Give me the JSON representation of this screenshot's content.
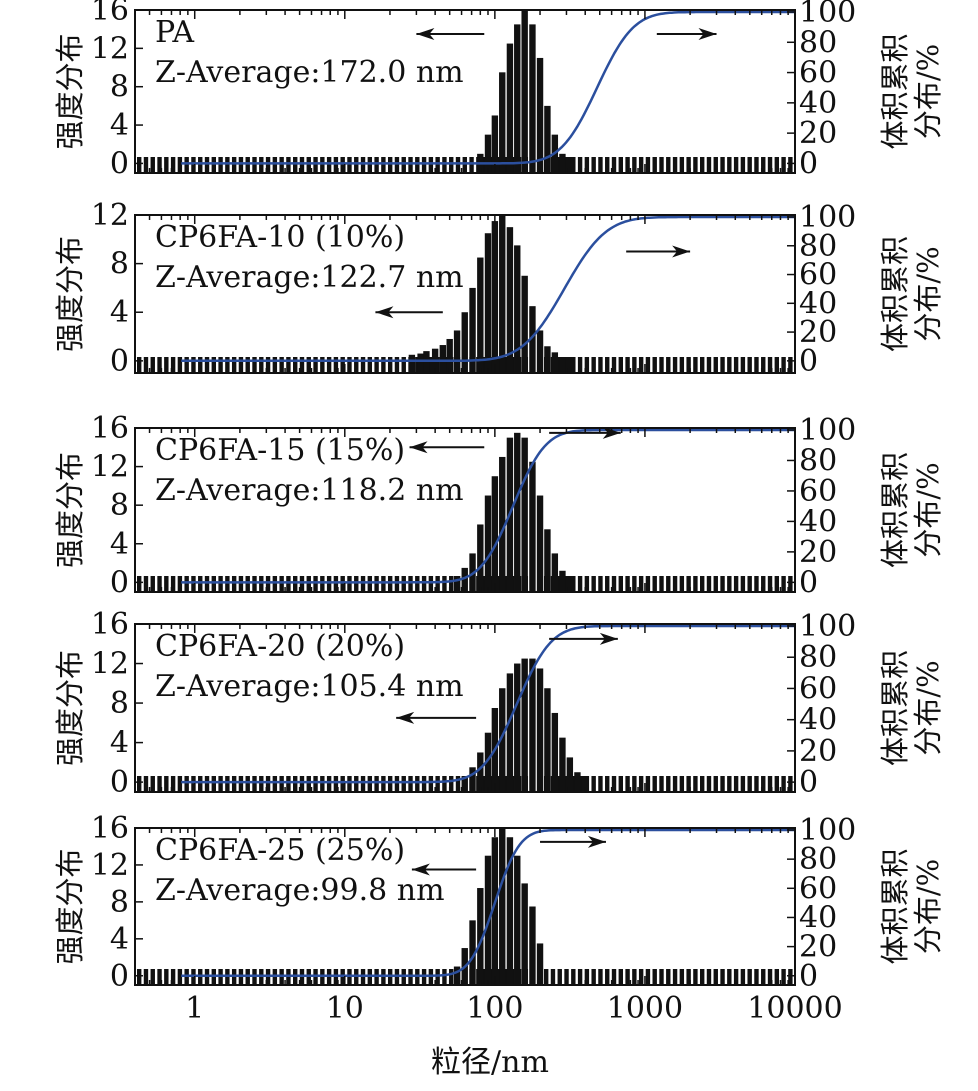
{
  "figure": {
    "xlabel": "粒径/nm",
    "x_ticks": [
      "1",
      "10",
      "100",
      "1000",
      "10000"
    ],
    "left_ylabel": "强度分布",
    "right_ylabel_lines": [
      "体积累积",
      "分布/%"
    ]
  },
  "colors": {
    "bars": "#111111",
    "cumulative_curve": "#2b4f9e",
    "axes": "#111111"
  },
  "chart_data": [
    {
      "type": "bar",
      "label": "PA",
      "z_average": "Z-Average:172.0 nm",
      "x_scale": "log",
      "xlim": [
        0.4,
        10000
      ],
      "ylim_left": [
        -1,
        16
      ],
      "left_ticks": [
        "0",
        "4",
        "8",
        "12",
        "16"
      ],
      "ylim_right": [
        0,
        100
      ],
      "right_ticks": [
        "0",
        "20",
        "40",
        "60",
        "80",
        "100"
      ],
      "bars_x": [
        80,
        90,
        100,
        112,
        126,
        141,
        158,
        178,
        200,
        224,
        251,
        282,
        316
      ],
      "bars_y": [
        1,
        3,
        5,
        9.5,
        12.5,
        14.5,
        16,
        14.5,
        11,
        6,
        3,
        1,
        0.3
      ],
      "cumulative_median": 480,
      "cumulative_width": 0.19,
      "arrows": [
        {
          "dir": "left",
          "x_from": 85,
          "x_to": 30,
          "y": 13.5
        },
        {
          "dir": "right",
          "x_from": 1200,
          "x_to": 3000,
          "y": 13.5
        }
      ]
    },
    {
      "type": "bar",
      "label": "CP6FA-10 (10%)",
      "z_average": "Z-Average:122.7 nm",
      "x_scale": "log",
      "xlim": [
        0.4,
        10000
      ],
      "ylim_left": [
        -1,
        12
      ],
      "left_ticks": [
        "0",
        "4",
        "8",
        "12"
      ],
      "ylim_right": [
        0,
        100
      ],
      "right_ticks": [
        "0",
        "20",
        "40",
        "60",
        "80",
        "100"
      ],
      "bars_x": [
        28,
        32,
        35,
        40,
        45,
        50,
        56,
        63,
        71,
        80,
        90,
        100,
        112,
        126,
        141,
        158,
        178,
        200,
        224,
        251,
        282,
        316
      ],
      "bars_y": [
        0.5,
        0.6,
        0.8,
        1.0,
        1.3,
        1.8,
        2.5,
        4,
        6,
        8.5,
        10.5,
        11.5,
        12,
        11,
        9.5,
        7,
        4.5,
        2.5,
        1.2,
        0.7,
        0.3,
        0.1
      ],
      "cumulative_median": 290,
      "cumulative_width": 0.22,
      "arrows": [
        {
          "dir": "left",
          "x_from": 45,
          "x_to": 16,
          "y": 4
        },
        {
          "dir": "right",
          "x_from": 750,
          "x_to": 2000,
          "y": 9
        }
      ]
    },
    {
      "type": "bar",
      "label": "CP6FA-15 (15%)",
      "z_average": "Z-Average:118.2 nm",
      "x_scale": "log",
      "xlim": [
        0.4,
        10000
      ],
      "ylim_left": [
        -1,
        16
      ],
      "left_ticks": [
        "0",
        "4",
        "8",
        "12",
        "16"
      ],
      "ylim_right": [
        0,
        100
      ],
      "right_ticks": [
        "0",
        "20",
        "40",
        "60",
        "80",
        "100"
      ],
      "bars_x": [
        56,
        63,
        71,
        80,
        90,
        100,
        112,
        126,
        141,
        158,
        178,
        200,
        224,
        251,
        282,
        316
      ],
      "bars_y": [
        0.5,
        1.5,
        3,
        6,
        9,
        11,
        13,
        15,
        15.5,
        15,
        12.5,
        9,
        5.5,
        3,
        1.2,
        0.4
      ],
      "cumulative_median": 132,
      "cumulative_width": 0.17,
      "arrows": [
        {
          "dir": "left",
          "x_from": 85,
          "x_to": 27,
          "y": 14
        },
        {
          "dir": "right",
          "x_from": 230,
          "x_to": 690,
          "y": 15.5
        }
      ]
    },
    {
      "type": "bar",
      "label": "CP6FA-20 (20%)",
      "z_average": "Z-Average:105.4 nm",
      "x_scale": "log",
      "xlim": [
        0.4,
        10000
      ],
      "ylim_left": [
        -1,
        16
      ],
      "left_ticks": [
        "0",
        "4",
        "8",
        "12",
        "16"
      ],
      "ylim_right": [
        0,
        100
      ],
      "right_ticks": [
        "0",
        "20",
        "40",
        "60",
        "80",
        "100"
      ],
      "bars_x": [
        63,
        71,
        80,
        90,
        100,
        112,
        126,
        141,
        158,
        178,
        200,
        224,
        251,
        282,
        316,
        355,
        398
      ],
      "bars_y": [
        0.5,
        1.5,
        3,
        5,
        7.5,
        9.5,
        11,
        12,
        12.5,
        12.5,
        11.5,
        9.5,
        7,
        4.5,
        2.5,
        1.0,
        0.3
      ],
      "cumulative_median": 140,
      "cumulative_width": 0.18,
      "arrows": [
        {
          "dir": "left",
          "x_from": 75,
          "x_to": 22,
          "y": 6.5
        },
        {
          "dir": "right",
          "x_from": 230,
          "x_to": 660,
          "y": 14.5
        }
      ]
    },
    {
      "type": "bar",
      "label": "CP6FA-25 (25%)",
      "z_average": "Z-Average:99.8 nm",
      "x_scale": "log",
      "xlim": [
        0.4,
        10000
      ],
      "ylim_left": [
        -1,
        16
      ],
      "left_ticks": [
        "0",
        "4",
        "8",
        "12",
        "16"
      ],
      "ylim_right": [
        0,
        100
      ],
      "right_ticks": [
        "0",
        "20",
        "40",
        "60",
        "80",
        "100"
      ],
      "bars_x": [
        56,
        63,
        71,
        80,
        90,
        100,
        112,
        126,
        141,
        158,
        178,
        200
      ],
      "bars_y": [
        1.0,
        3.0,
        6.0,
        9.5,
        13,
        15,
        16,
        15,
        13,
        10,
        7.5,
        3.5
      ],
      "cumulative_median": 100,
      "cumulative_width": 0.13,
      "arrows": [
        {
          "dir": "left",
          "x_from": 75,
          "x_to": 28,
          "y": 11.5
        },
        {
          "dir": "right",
          "x_from": 200,
          "x_to": 550,
          "y": 14.5
        }
      ]
    }
  ]
}
